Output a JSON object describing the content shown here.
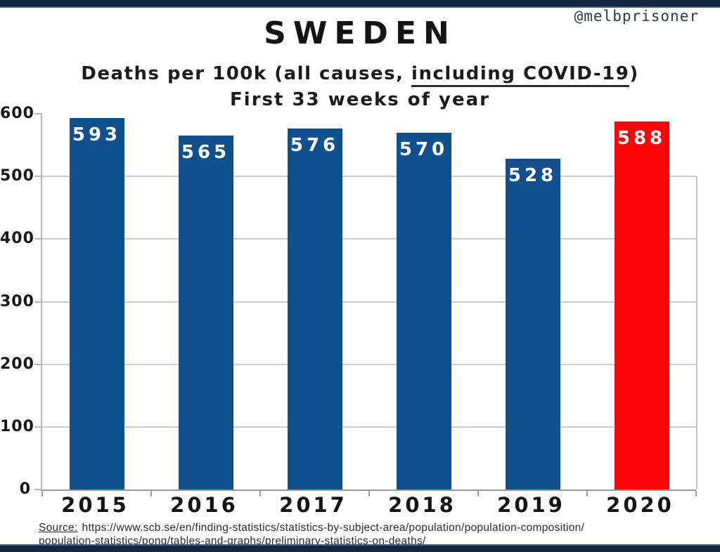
{
  "watermark": "@melbprisoner",
  "title": "SWEDEN",
  "subtitle": {
    "prefix": "Deaths per 100k (all causes, ",
    "underlined": "including COVID-19",
    "suffix": ")",
    "line2": "First 33 weeks of year"
  },
  "source": {
    "label": "Source:",
    "line1": "https://www.scb.se/en/finding-statistics/statistics-by-subject-area/population/population-composition/",
    "line2": "population-statistics/pong/tables-and-graphs/preliminary-statistics-on-deaths/"
  },
  "colors": {
    "bar_default": "#11508e",
    "bar_highlight": "#fb0606",
    "frame_bar": "#132740",
    "gridline": "#cccccc",
    "axis": "#9b9b9b"
  },
  "chart_data": {
    "type": "bar",
    "title": "SWEDEN",
    "subtitle_line1": "Deaths per 100k (all causes, including COVID-19)",
    "subtitle_line2": "First 33 weeks of year",
    "categories": [
      "2015",
      "2016",
      "2017",
      "2018",
      "2019",
      "2020"
    ],
    "values": [
      593,
      565,
      576,
      570,
      528,
      588
    ],
    "highlight_index": 5,
    "xlabel": "",
    "ylabel": "",
    "ylim": [
      0,
      600
    ],
    "yticks": [
      0,
      100,
      200,
      300,
      400,
      500,
      600
    ],
    "grid": true,
    "legend": "none",
    "bar_label_color": "#ffffff"
  }
}
